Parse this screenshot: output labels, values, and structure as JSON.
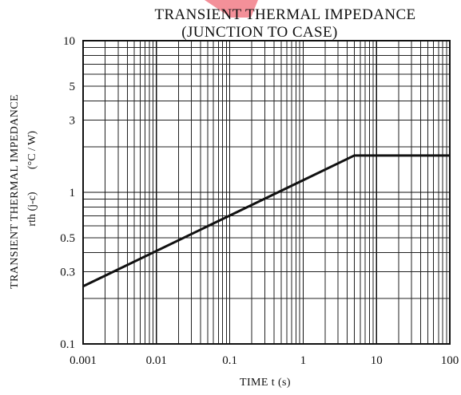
{
  "chart_data": {
    "type": "line",
    "title": "TRANSIENT THERMAL IMPEDANCE",
    "subtitle": "(JUNCTION TO CASE)",
    "xlabel": "TIME   t   (s)",
    "ylabel": "TRANSIENT THERMAL IMPEDANCE",
    "ylabel_symbol": "rth (j-c)",
    "ylabel_unit": "(°C / W)",
    "x_scale": "log",
    "y_scale": "log",
    "xlim": [
      0.001,
      100
    ],
    "ylim": [
      0.1,
      10
    ],
    "x_ticks": [
      0.001,
      0.01,
      0.1,
      1,
      10,
      100
    ],
    "x_tick_labels": [
      "0.001",
      "0.01",
      "0.1",
      "1",
      "10",
      "100"
    ],
    "y_ticks": [
      0.1,
      0.3,
      0.5,
      1,
      3,
      5,
      10
    ],
    "y_tick_labels": [
      "0.1",
      "0.3",
      "0.5",
      "1",
      "3",
      "5",
      "10"
    ],
    "grid": true,
    "legend": "none",
    "series": [
      {
        "x": [
          0.001,
          5,
          100
        ],
        "y": [
          0.24,
          1.75,
          1.75
        ]
      }
    ],
    "colors": {
      "line": "#111111",
      "grid": "#222222",
      "watermark": "#f28a94"
    }
  }
}
